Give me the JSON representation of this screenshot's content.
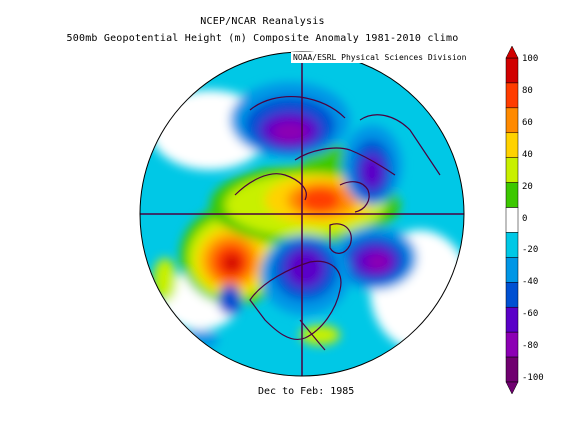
{
  "header": {
    "title": "NCEP/NCAR Reanalysis",
    "subtitle": "500mb Geopotential Height (m) Composite Anomaly 1981-2010 climo",
    "credit": "NOAA/ESRL Physical Sciences Division"
  },
  "footer": {
    "period": "Dec to Feb: 1985"
  },
  "colorbar": {
    "labels": [
      "100",
      "80",
      "60",
      "40",
      "20",
      "0",
      "-20",
      "-40",
      "-60",
      "-80",
      "-100"
    ],
    "colors": [
      "#d10000",
      "#ff3c00",
      "#ff8a00",
      "#ffd200",
      "#c8f000",
      "#3cc800",
      "#ffffff",
      "#00c8e6",
      "#0096e6",
      "#0050d2",
      "#5a00c8",
      "#8c00b4",
      "#700070"
    ]
  },
  "map": {
    "projection": "north-polar-stereographic",
    "features": [
      {
        "name": "positive-anomaly-alaska-pacific",
        "value": 100
      },
      {
        "name": "positive-anomaly-arctic-greenland",
        "value": 100
      },
      {
        "name": "negative-anomaly-siberia",
        "value": -80
      },
      {
        "name": "negative-anomaly-scandinavia",
        "value": -80
      },
      {
        "name": "negative-anomaly-north-atlantic",
        "value": -80
      },
      {
        "name": "negative-anomaly-canada",
        "value": -60
      }
    ]
  }
}
